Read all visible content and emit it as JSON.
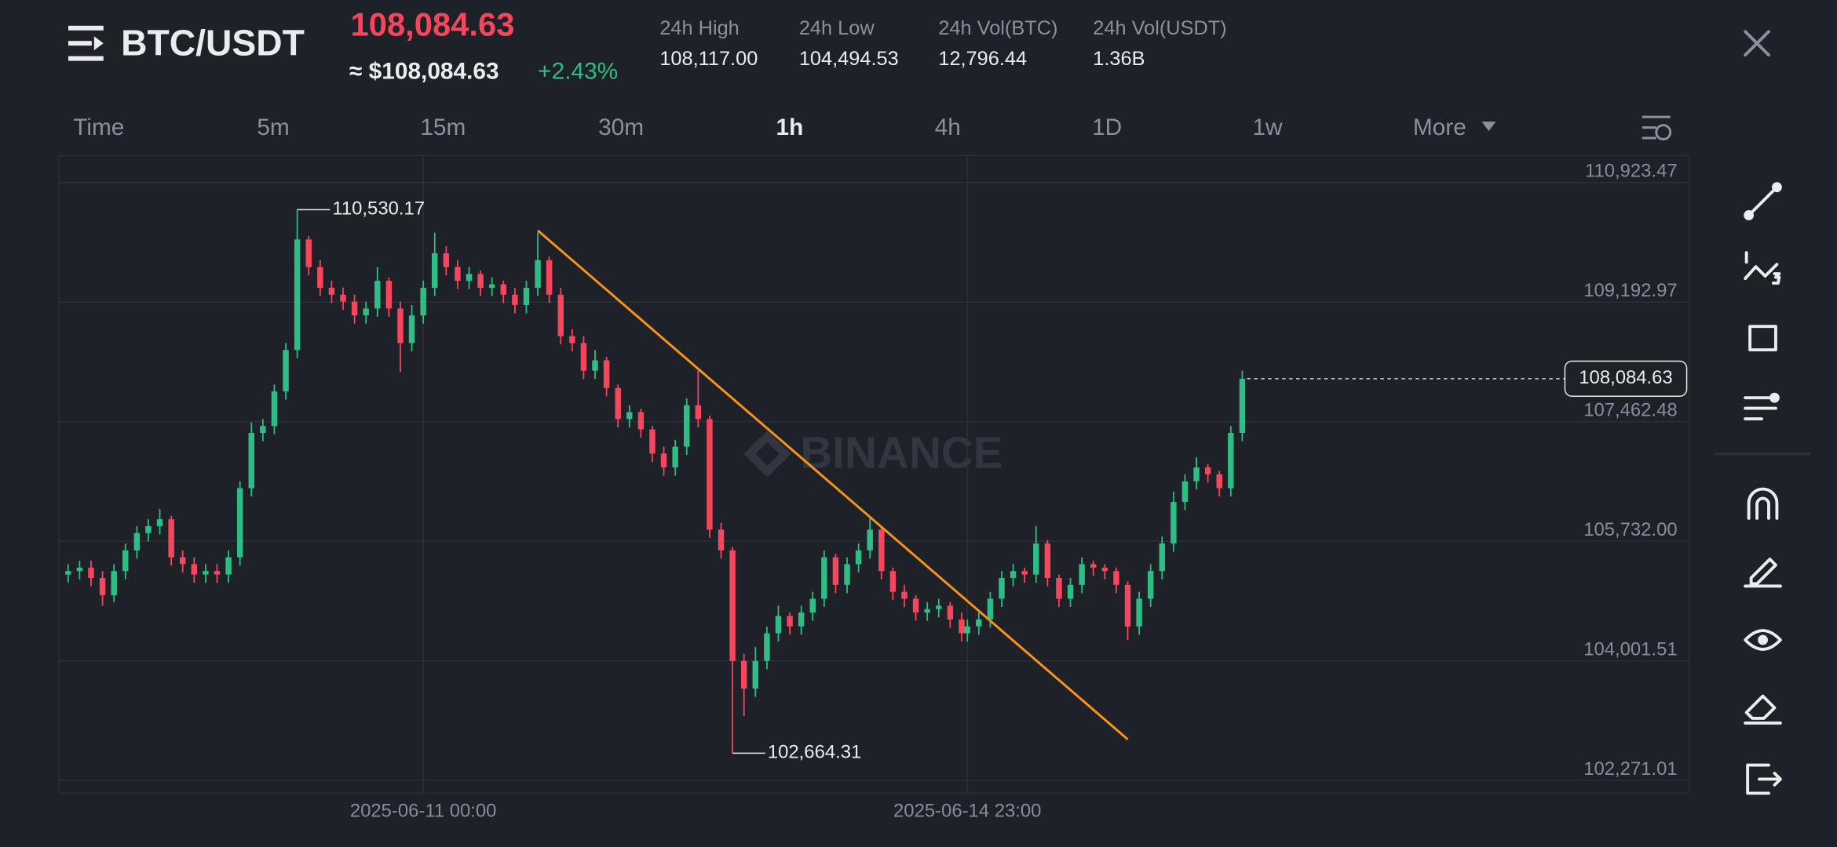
{
  "header": {
    "symbol": "BTC/USDT",
    "price": "108,084.63",
    "price_usd": "≈ $108,084.63",
    "change": "+2.43%",
    "stats": [
      {
        "label": "24h High",
        "value": "108,117.00"
      },
      {
        "label": "24h Low",
        "value": "104,494.53"
      },
      {
        "label": "24h Vol(BTC)",
        "value": "12,796.44"
      },
      {
        "label": "24h Vol(USDT)",
        "value": "1.36B"
      }
    ]
  },
  "timeframes": [
    "Time",
    "5m",
    "15m",
    "30m",
    "1h",
    "4h",
    "1D",
    "1w",
    "More"
  ],
  "watermark": "BINANCE",
  "chart_data": {
    "type": "candlestick",
    "up_color": "#2ebd85",
    "down_color": "#f6465d",
    "grid": true,
    "ylim": [
      102086,
      111313
    ],
    "yticks": [
      {
        "value": 110923.47,
        "label": "110,923.47"
      },
      {
        "value": 109192.97,
        "label": "109,192.97"
      },
      {
        "value": 107462.48,
        "label": "107,462.48"
      },
      {
        "value": 105732.0,
        "label": "105,732.00"
      },
      {
        "value": 104001.51,
        "label": "104,001.51"
      },
      {
        "value": 102271.01,
        "label": "102,271.01"
      }
    ],
    "xlim": [
      "2025-06-08 08:48",
      "2025-06-20 04:36"
    ],
    "xticks": [
      "2025-06-11 00:00",
      "2025-06-14 23:00"
    ],
    "max_label": "110,530.17",
    "min_label": "102,664.31",
    "last_price_label": "108,084.63",
    "trendline": {
      "x": [
        "2025-06-11 20:00",
        "2025-06-16 03:00"
      ],
      "y": [
        110229,
        102865
      ],
      "color": "#f7931a"
    },
    "x": [
      "2025-06-08 10:00",
      "2025-06-08 12:00",
      "2025-06-08 14:00",
      "2025-06-08 16:00",
      "2025-06-08 18:00",
      "2025-06-08 20:00",
      "2025-06-08 22:00",
      "2025-06-09 00:00",
      "2025-06-09 02:00",
      "2025-06-09 04:00",
      "2025-06-09 06:00",
      "2025-06-09 08:00",
      "2025-06-09 10:00",
      "2025-06-09 12:00",
      "2025-06-09 14:00",
      "2025-06-09 16:00",
      "2025-06-09 18:00",
      "2025-06-09 20:00",
      "2025-06-09 22:00",
      "2025-06-10 00:00",
      "2025-06-10 02:00",
      "2025-06-10 04:00",
      "2025-06-10 06:00",
      "2025-06-10 08:00",
      "2025-06-10 10:00",
      "2025-06-10 12:00",
      "2025-06-10 14:00",
      "2025-06-10 16:00",
      "2025-06-10 18:00",
      "2025-06-10 20:00",
      "2025-06-10 22:00",
      "2025-06-11 00:00",
      "2025-06-11 02:00",
      "2025-06-11 04:00",
      "2025-06-11 06:00",
      "2025-06-11 08:00",
      "2025-06-11 10:00",
      "2025-06-11 12:00",
      "2025-06-11 14:00",
      "2025-06-11 16:00",
      "2025-06-11 18:00",
      "2025-06-11 20:00",
      "2025-06-11 22:00",
      "2025-06-12 00:00",
      "2025-06-12 02:00",
      "2025-06-12 04:00",
      "2025-06-12 06:00",
      "2025-06-12 08:00",
      "2025-06-12 10:00",
      "2025-06-12 12:00",
      "2025-06-12 14:00",
      "2025-06-12 16:00",
      "2025-06-12 18:00",
      "2025-06-12 20:00",
      "2025-06-12 22:00",
      "2025-06-13 00:00",
      "2025-06-13 02:00",
      "2025-06-13 04:00",
      "2025-06-13 06:00",
      "2025-06-13 08:00",
      "2025-06-13 10:00",
      "2025-06-13 12:00",
      "2025-06-13 14:00",
      "2025-06-13 16:00",
      "2025-06-13 18:00",
      "2025-06-13 20:00",
      "2025-06-13 22:00",
      "2025-06-14 00:00",
      "2025-06-14 02:00",
      "2025-06-14 04:00",
      "2025-06-14 06:00",
      "2025-06-14 08:00",
      "2025-06-14 10:00",
      "2025-06-14 12:00",
      "2025-06-14 14:00",
      "2025-06-14 16:00",
      "2025-06-14 18:00",
      "2025-06-14 20:00",
      "2025-06-14 22:00",
      "2025-06-14 23:00",
      "2025-06-15 01:00",
      "2025-06-15 03:00",
      "2025-06-15 05:00",
      "2025-06-15 07:00",
      "2025-06-15 09:00",
      "2025-06-15 11:00",
      "2025-06-15 13:00",
      "2025-06-15 15:00",
      "2025-06-15 17:00",
      "2025-06-15 19:00",
      "2025-06-15 21:00",
      "2025-06-15 23:00",
      "2025-06-16 01:00",
      "2025-06-16 03:00",
      "2025-06-16 05:00",
      "2025-06-16 07:00",
      "2025-06-16 09:00",
      "2025-06-16 11:00",
      "2025-06-16 13:00",
      "2025-06-16 15:00",
      "2025-06-16 17:00",
      "2025-06-16 19:00",
      "2025-06-16 21:00",
      "2025-06-16 23:00"
    ],
    "open": [
      105250,
      105300,
      105350,
      105200,
      104950,
      105300,
      105600,
      105850,
      105950,
      106050,
      105500,
      105400,
      105250,
      105300,
      105250,
      105500,
      106500,
      107300,
      107400,
      107900,
      108500,
      110100,
      109700,
      109400,
      109300,
      109200,
      109000,
      109100,
      109500,
      109100,
      108600,
      109000,
      109400,
      109900,
      109700,
      109500,
      109600,
      109400,
      109450,
      109300,
      109150,
      109400,
      109800,
      109300,
      108700,
      108600,
      108200,
      108350,
      107950,
      107500,
      107600,
      107350,
      107000,
      106800,
      107100,
      107700,
      107500,
      105900,
      105600,
      104000,
      103600,
      104000,
      104400,
      104650,
      104500,
      104700,
      104900,
      105500,
      105100,
      105400,
      105600,
      105900,
      105300,
      105000,
      104900,
      104700,
      104750,
      104800,
      104600,
      104400,
      104500,
      104600,
      104900,
      105200,
      105300,
      105250,
      105700,
      105200,
      104900,
      105100,
      105400,
      105350,
      105300,
      105100,
      104500,
      104900,
      105300,
      105700,
      106300,
      106600,
      106800,
      106700,
      106500,
      107300
    ],
    "high": [
      105400,
      105450,
      105450,
      105300,
      105400,
      105700,
      105950,
      106050,
      106200,
      106100,
      105600,
      105500,
      105400,
      105400,
      105600,
      106600,
      107450,
      107500,
      108000,
      108600,
      110530.17,
      110150,
      109800,
      109500,
      109400,
      109300,
      109200,
      109700,
      109550,
      109200,
      109150,
      109500,
      110200,
      110000,
      109800,
      109700,
      109650,
      109550,
      109500,
      109400,
      109500,
      110200,
      109850,
      109400,
      108800,
      108700,
      108500,
      108400,
      108000,
      107700,
      107650,
      107400,
      107100,
      107200,
      107800,
      108200,
      107550,
      106000,
      105650,
      104100,
      104200,
      104500,
      104800,
      104700,
      104800,
      105000,
      105600,
      105550,
      105500,
      105700,
      106064,
      105950,
      105350,
      105100,
      104950,
      104850,
      104900,
      104850,
      104700,
      104600,
      104700,
      105000,
      105300,
      105400,
      105350,
      105950,
      105750,
      105250,
      105200,
      105500,
      105450,
      105400,
      105350,
      105150,
      105000,
      105400,
      105800,
      106450,
      106700,
      106950,
      106850,
      106750,
      107400,
      108200
    ],
    "low": [
      105130,
      105180,
      105080,
      104800,
      104850,
      105180,
      105480,
      105730,
      105830,
      105380,
      105280,
      105130,
      105130,
      105130,
      105130,
      105380,
      106380,
      107180,
      107280,
      107780,
      108380,
      109580,
      109280,
      109180,
      109080,
      108880,
      108880,
      108980,
      108980,
      108180,
      108480,
      108880,
      109280,
      109580,
      109380,
      109380,
      109280,
      109280,
      109180,
      109030,
      109030,
      109280,
      109180,
      108580,
      108480,
      108080,
      108080,
      107830,
      107380,
      107380,
      107230,
      106880,
      106680,
      106680,
      106980,
      107380,
      105780,
      105480,
      102664.31,
      103200,
      103480,
      103880,
      104280,
      104380,
      104380,
      104580,
      104780,
      104980,
      104980,
      105280,
      105480,
      105180,
      104880,
      104780,
      104580,
      104580,
      104630,
      104480,
      104280,
      104280,
      104380,
      104480,
      104780,
      105080,
      105130,
      105130,
      105080,
      104780,
      104780,
      104980,
      105230,
      105180,
      104980,
      104300,
      104380,
      104780,
      105180,
      105580,
      106180,
      106480,
      106580,
      106380,
      106380,
      107180
    ],
    "close": [
      105300,
      105350,
      105200,
      104950,
      105300,
      105600,
      105850,
      105950,
      106050,
      105500,
      105400,
      105250,
      105300,
      105250,
      105500,
      106500,
      107300,
      107400,
      107900,
      108500,
      110100,
      109700,
      109400,
      109300,
      109200,
      109000,
      109100,
      109500,
      109100,
      108600,
      109000,
      109400,
      109900,
      109700,
      109500,
      109600,
      109400,
      109450,
      109300,
      109150,
      109400,
      109800,
      109300,
      108700,
      108600,
      108200,
      108350,
      107950,
      107500,
      107600,
      107350,
      107000,
      106800,
      107100,
      107700,
      107500,
      105900,
      105600,
      104000,
      103600,
      104000,
      104400,
      104650,
      104500,
      104700,
      104900,
      105500,
      105100,
      105400,
      105600,
      105900,
      105300,
      105000,
      104900,
      104700,
      104750,
      104800,
      104600,
      104400,
      104500,
      104600,
      104900,
      105200,
      105300,
      105250,
      105700,
      105200,
      104900,
      105100,
      105400,
      105350,
      105300,
      105100,
      104500,
      104900,
      105300,
      105700,
      106300,
      106600,
      106800,
      106700,
      106500,
      107300,
      108084.63
    ]
  }
}
